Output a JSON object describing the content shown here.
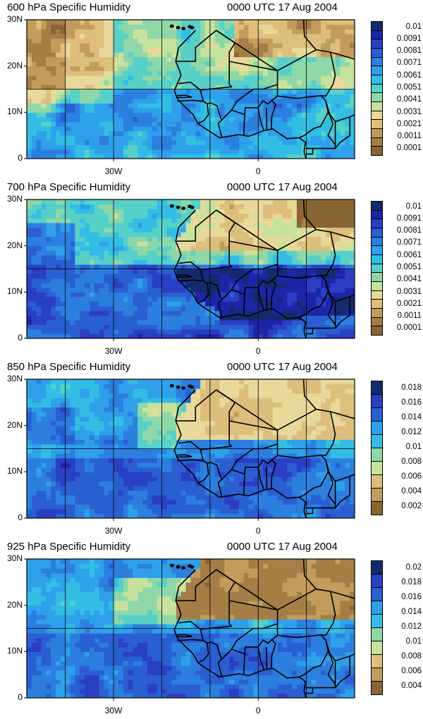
{
  "panels": [
    {
      "title": "600 hPa Specific Humidity",
      "time": "0000 UTC 17 Aug 2004",
      "lat_labels": [
        "30N",
        "20N",
        "10N",
        "0"
      ],
      "lon_labels": [
        "30W",
        "0"
      ],
      "colorbar_labels": [
        "0.01",
        "0.0091",
        "0.0081",
        "0.0071",
        "0.0061",
        "0.0051",
        "0.0041",
        "0.0031",
        "0.0021",
        "0.0011",
        "0.0001"
      ],
      "regime": "mid"
    },
    {
      "title": "700 hPa Specific Humidity",
      "time": "0000 UTC 17 Aug 2004",
      "lat_labels": [
        "30N",
        "20N",
        "10N",
        "0"
      ],
      "lon_labels": [
        "30W",
        "0"
      ],
      "colorbar_labels": [
        "0.01",
        "0.0091",
        "0.0081",
        "0.0071",
        "0.0061",
        "0.0051",
        "0.0041",
        "0.0031",
        "0.0021",
        "0.0011",
        "0.0001"
      ],
      "regime": "moist"
    },
    {
      "title": "850 hPa Specific Humidity",
      "time": "0000 UTC 17 Aug 2004",
      "lat_labels": [
        "30N",
        "20N",
        "10N",
        "0"
      ],
      "lon_labels": [
        "30W",
        "0"
      ],
      "colorbar_labels": [
        "0.018",
        "0.016",
        "0.014",
        "0.012",
        "0.01",
        "0.008",
        "0.006",
        "0.004",
        "0.002"
      ],
      "regime": "low"
    },
    {
      "title": "925 hPa Specific Humidity",
      "time": "0000 UTC 17 Aug 2004",
      "lat_labels": [
        "30N",
        "20N",
        "10N",
        "0"
      ],
      "lon_labels": [
        "30W",
        "0"
      ],
      "colorbar_labels": [
        "0.02",
        "0.018",
        "0.016",
        "0.014",
        "0.012",
        "0.01",
        "0.008",
        "0.006",
        "0.004"
      ],
      "regime": "surface"
    }
  ],
  "colors": {
    "palette": [
      "#8a6534",
      "#a57e45",
      "#c29c5c",
      "#ddbe7c",
      "#e8d99a",
      "#c6e29c",
      "#8ed7a8",
      "#57d0c8",
      "#33bde4",
      "#2fa0ea",
      "#2c7fdf",
      "#2a5fd2",
      "#2a3fc4",
      "#1e25a8",
      "#152a6e"
    ],
    "land_border": "#000000",
    "grid": "#000000"
  }
}
